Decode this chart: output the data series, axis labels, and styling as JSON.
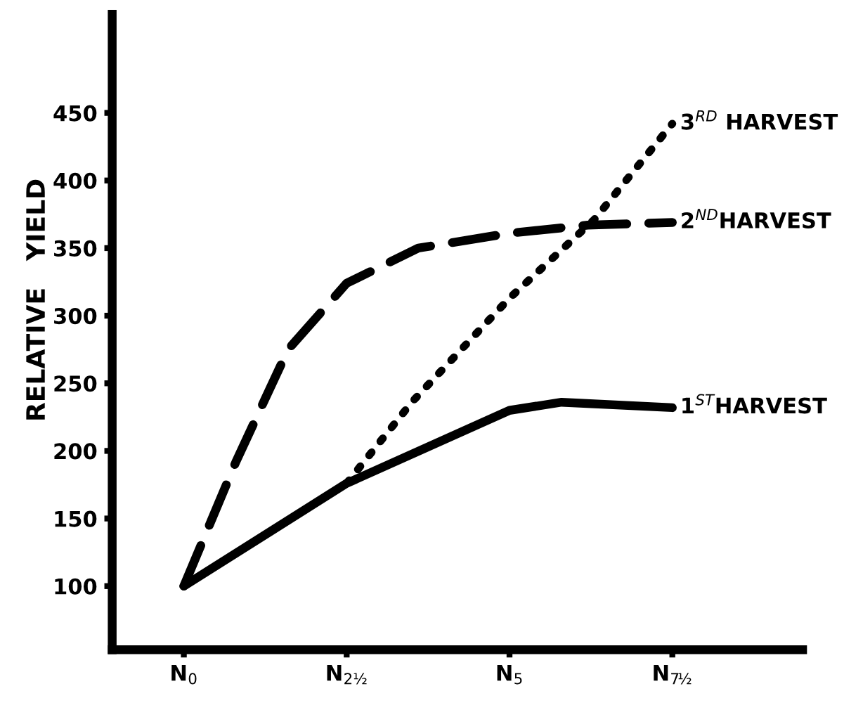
{
  "chart_data": {
    "type": "line",
    "ylabel": "RELATIVE   YIELD",
    "xlim": [
      -1.1,
      9.5
    ],
    "ylim": [
      53,
      523
    ],
    "xticks": [
      {
        "value": 0,
        "label": "N$_{0}$"
      },
      {
        "value": 2.5,
        "label": "N$_{2½}$"
      },
      {
        "value": 5,
        "label": "N$_{5}$"
      },
      {
        "value": 7.5,
        "label": "N$_{7½}$"
      }
    ],
    "yticks": [
      100,
      150,
      200,
      250,
      300,
      350,
      400,
      450
    ],
    "grid": false,
    "legend": false,
    "marker": "none",
    "series": [
      {
        "name": "1$^{ST}$HARVEST",
        "color": "#000000",
        "line_style": "solid",
        "x": [
          0,
          2.5,
          5,
          5.8,
          7.5
        ],
        "values": [
          100,
          176,
          230,
          236,
          232
        ]
      },
      {
        "name": "2$^{ND}$HARVEST",
        "color": "#000000",
        "line_style": "dashed",
        "x": [
          0,
          0.8,
          1.6,
          2.5,
          3.6,
          5,
          6.2,
          7.5
        ],
        "values": [
          100,
          192,
          275,
          324,
          350,
          361,
          367,
          369
        ]
      },
      {
        "name": "3$^{RD}$ HARVEST",
        "color": "#000000",
        "line_style": "dotted",
        "x": [
          2.5,
          3.5,
          5,
          6.3,
          7.5
        ],
        "values": [
          176,
          236,
          313,
          371,
          442
        ]
      }
    ]
  }
}
